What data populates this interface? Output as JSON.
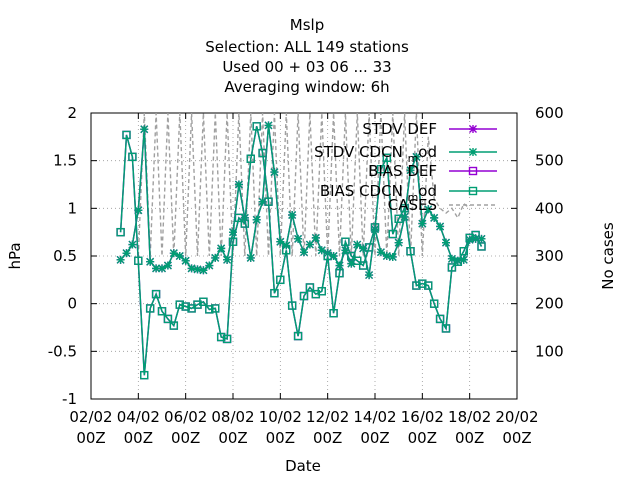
{
  "chart_data": {
    "type": "line",
    "title_lines": [
      "Mslp",
      "Selection: ALL    149 stations",
      "Used  00 + 03 06 ... 33",
      "Averaging window:  6h"
    ],
    "xlabel": "Date",
    "ylabel": "hPa",
    "y2label": "No cases",
    "ylim": [
      -1,
      2
    ],
    "y2lim": [
      0,
      600
    ],
    "xlim": [
      0,
      18
    ],
    "x_ticks": [
      {
        "x": 0,
        "line1": "02/02",
        "line2": "00Z"
      },
      {
        "x": 2,
        "line1": "04/02",
        "line2": "00Z"
      },
      {
        "x": 4,
        "line1": "06/02",
        "line2": "00Z"
      },
      {
        "x": 6,
        "line1": "08/02",
        "line2": "00Z"
      },
      {
        "x": 8,
        "line1": "10/02",
        "line2": "00Z"
      },
      {
        "x": 10,
        "line1": "12/02",
        "line2": "00Z"
      },
      {
        "x": 12,
        "line1": "14/02",
        "line2": "00Z"
      },
      {
        "x": 14,
        "line1": "16/02",
        "line2": "00Z"
      },
      {
        "x": 16,
        "line1": "18/02",
        "line2": "00Z"
      },
      {
        "x": 18,
        "line1": "20/02",
        "line2": "00Z"
      }
    ],
    "y_ticks": [
      "-1",
      "-0.5",
      "0",
      "0.5",
      "1",
      "1.5",
      "2"
    ],
    "y2_ticks": [
      "100",
      "200",
      "300",
      "400",
      "500",
      "600"
    ],
    "grid": true,
    "legend_position": "top-right",
    "series": [
      {
        "name": "STDV DEF",
        "color": "#9400d3",
        "marker": "star",
        "axis": "y",
        "x": [
          1.25,
          1.5,
          1.75,
          2,
          2.25,
          2.5,
          2.75,
          3,
          3.25,
          3.5,
          3.75,
          4,
          4.25,
          4.5,
          4.75,
          5,
          5.25,
          5.5,
          5.75,
          6,
          6.25,
          6.5,
          6.75,
          7,
          7.25,
          7.5,
          7.75,
          8,
          8.25,
          8.5,
          8.75,
          9,
          9.25,
          9.5,
          9.75,
          10,
          10.25,
          10.5,
          10.75,
          11,
          11.25,
          11.5,
          11.75,
          12,
          12.25,
          12.5,
          12.75,
          13,
          13.25,
          13.5,
          13.75,
          14,
          14.25,
          14.5,
          14.75,
          15,
          15.25,
          15.5,
          15.75,
          16,
          16.25,
          16.5
        ],
        "values": [
          0.46,
          0.53,
          0.62,
          0.98,
          1.83,
          0.44,
          0.37,
          0.37,
          0.4,
          0.53,
          0.5,
          0.45,
          0.37,
          0.36,
          0.35,
          0.4,
          0.48,
          0.58,
          0.46,
          0.75,
          1.25,
          0.9,
          0.48,
          0.88,
          1.07,
          1.87,
          1.38,
          0.65,
          0.61,
          0.93,
          0.68,
          0.54,
          0.62,
          0.69,
          0.56,
          0.53,
          0.5,
          0.4,
          0.56,
          0.42,
          0.62,
          0.58,
          0.3,
          0.78,
          0.54,
          0.5,
          0.49,
          0.64,
          0.91,
          1.4,
          1.54,
          0.84,
          0.99,
          0.9,
          0.81,
          0.64,
          0.47,
          0.45,
          0.46,
          0.67,
          0.68,
          0.68
        ]
      },
      {
        "name": "STDV CDCN_mod",
        "color": "#009e73",
        "marker": "star",
        "axis": "y",
        "x": [
          1.25,
          1.5,
          1.75,
          2,
          2.25,
          2.5,
          2.75,
          3,
          3.25,
          3.5,
          3.75,
          4,
          4.25,
          4.5,
          4.75,
          5,
          5.25,
          5.5,
          5.75,
          6,
          6.25,
          6.5,
          6.75,
          7,
          7.25,
          7.5,
          7.75,
          8,
          8.25,
          8.5,
          8.75,
          9,
          9.25,
          9.5,
          9.75,
          10,
          10.25,
          10.5,
          10.75,
          11,
          11.25,
          11.5,
          11.75,
          12,
          12.25,
          12.5,
          12.75,
          13,
          13.25,
          13.5,
          13.75,
          14,
          14.25,
          14.5,
          14.75,
          15,
          15.25,
          15.5,
          15.75,
          16,
          16.25,
          16.5
        ],
        "values": [
          0.46,
          0.53,
          0.62,
          0.98,
          1.83,
          0.44,
          0.37,
          0.37,
          0.4,
          0.53,
          0.5,
          0.45,
          0.37,
          0.36,
          0.35,
          0.4,
          0.48,
          0.58,
          0.46,
          0.75,
          1.25,
          0.9,
          0.48,
          0.88,
          1.07,
          1.87,
          1.38,
          0.65,
          0.61,
          0.93,
          0.68,
          0.54,
          0.62,
          0.69,
          0.56,
          0.53,
          0.5,
          0.4,
          0.56,
          0.42,
          0.62,
          0.58,
          0.3,
          0.78,
          0.54,
          0.5,
          0.49,
          0.64,
          0.91,
          1.4,
          1.54,
          0.84,
          0.99,
          0.9,
          0.81,
          0.64,
          0.47,
          0.45,
          0.46,
          0.67,
          0.68,
          0.68
        ]
      },
      {
        "name": "BIAS DEF",
        "color": "#9400d3",
        "marker": "square",
        "axis": "y",
        "x": [
          1.25,
          1.5,
          1.75,
          2,
          2.25,
          2.5,
          2.75,
          3,
          3.25,
          3.5,
          3.75,
          4,
          4.25,
          4.5,
          4.75,
          5,
          5.25,
          5.5,
          5.75,
          6,
          6.25,
          6.5,
          6.75,
          7,
          7.25,
          7.5,
          7.75,
          8,
          8.25,
          8.5,
          8.75,
          9,
          9.25,
          9.5,
          9.75,
          10,
          10.25,
          10.5,
          10.75,
          11,
          11.25,
          11.5,
          11.75,
          12,
          12.25,
          12.5,
          12.75,
          13,
          13.25,
          13.5,
          13.75,
          14,
          14.25,
          14.5,
          14.75,
          15,
          15.25,
          15.5,
          15.75,
          16,
          16.25,
          16.5
        ],
        "values": [
          0.75,
          1.77,
          1.54,
          0.45,
          -0.75,
          -0.05,
          0.1,
          -0.08,
          -0.16,
          -0.23,
          -0.01,
          -0.03,
          -0.05,
          -0.01,
          0.02,
          -0.06,
          -0.05,
          -0.35,
          -0.37,
          0.65,
          0.9,
          0.84,
          1.52,
          1.86,
          1.58,
          1.07,
          0.11,
          0.25,
          0.56,
          -0.02,
          -0.34,
          0.08,
          0.17,
          0.1,
          0.13,
          0.5,
          -0.1,
          0.32,
          0.65,
          0.5,
          0.45,
          0.4,
          0.59,
          0.8,
          1.41,
          1.53,
          0.73,
          0.89,
          1.0,
          0.55,
          0.19,
          0.21,
          0.19,
          0.0,
          -0.16,
          -0.26,
          0.38,
          0.44,
          0.55,
          0.69,
          0.72,
          0.6
        ]
      },
      {
        "name": "BIAS CDCN_mod",
        "color": "#009e73",
        "marker": "square",
        "axis": "y",
        "x": [
          1.25,
          1.5,
          1.75,
          2,
          2.25,
          2.5,
          2.75,
          3,
          3.25,
          3.5,
          3.75,
          4,
          4.25,
          4.5,
          4.75,
          5,
          5.25,
          5.5,
          5.75,
          6,
          6.25,
          6.5,
          6.75,
          7,
          7.25,
          7.5,
          7.75,
          8,
          8.25,
          8.5,
          8.75,
          9,
          9.25,
          9.5,
          9.75,
          10,
          10.25,
          10.5,
          10.75,
          11,
          11.25,
          11.5,
          11.75,
          12,
          12.25,
          12.5,
          12.75,
          13,
          13.25,
          13.5,
          13.75,
          14,
          14.25,
          14.5,
          14.75,
          15,
          15.25,
          15.5,
          15.75,
          16,
          16.25,
          16.5
        ],
        "values": [
          0.75,
          1.77,
          1.54,
          0.45,
          -0.75,
          -0.05,
          0.1,
          -0.08,
          -0.16,
          -0.23,
          -0.01,
          -0.03,
          -0.05,
          -0.01,
          0.02,
          -0.06,
          -0.05,
          -0.35,
          -0.37,
          0.65,
          0.9,
          0.84,
          1.52,
          1.86,
          1.58,
          1.07,
          0.11,
          0.25,
          0.56,
          -0.02,
          -0.34,
          0.08,
          0.17,
          0.1,
          0.13,
          0.5,
          -0.1,
          0.32,
          0.65,
          0.5,
          0.45,
          0.4,
          0.59,
          0.8,
          1.41,
          1.53,
          0.73,
          0.89,
          1.0,
          0.55,
          0.19,
          0.21,
          0.19,
          0.0,
          -0.16,
          -0.26,
          0.38,
          0.44,
          0.55,
          0.69,
          0.72,
          0.6
        ]
      },
      {
        "name": "CASES",
        "color": "#a0a0a0",
        "dash": true,
        "axis": "y2",
        "x": [
          2,
          2.25,
          2.5,
          2.75,
          3,
          3.25,
          3.5,
          3.75,
          4,
          4.25,
          4.5,
          4.75,
          5,
          5.25,
          5.5,
          5.75,
          6,
          6.25,
          6.5,
          6.75,
          7,
          7.25,
          7.5,
          7.75,
          8,
          8.25,
          8.5,
          8.75,
          9,
          9.25,
          9.5,
          9.75,
          10,
          10.25,
          10.5,
          10.75,
          11,
          11.25,
          11.5,
          11.75,
          12,
          12.25,
          12.5,
          12.75,
          13,
          13.25,
          13.5,
          13.75,
          14,
          14.25,
          14.5,
          14.75,
          15,
          15.25,
          15.5,
          15.75,
          16
        ],
        "values": [
          300,
          600,
          300,
          600,
          300,
          600,
          300,
          600,
          300,
          600,
          300,
          600,
          300,
          600,
          300,
          600,
          300,
          600,
          300,
          600,
          300,
          600,
          300,
          600,
          300,
          600,
          300,
          600,
          300,
          600,
          300,
          600,
          300,
          600,
          300,
          600,
          300,
          600,
          300,
          600,
          300,
          600,
          300,
          600,
          300,
          600,
          300,
          600,
          300,
          550,
          420,
          400,
          390,
          400,
          380,
          410,
          400
        ]
      }
    ]
  }
}
